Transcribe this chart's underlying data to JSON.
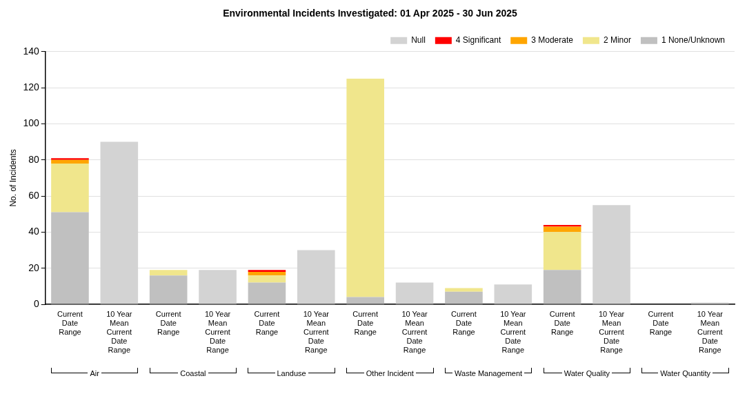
{
  "chart_data": {
    "type": "bar",
    "title": "Environmental Incidents Investigated: 01 Apr 2025 - 30 Jun 2025",
    "ylabel": "No. of Incidents",
    "categories": [
      "Current Date Range",
      "10 Year Mean Current Date Range",
      "Current Date Range",
      "10 Year Mean Current Date Range",
      "Current Date Range",
      "10 Year Mean Current Date Range",
      "Current Date Range",
      "10 Year Mean Current Date Range",
      "Current Date Range",
      "10 Year Mean Current Date Range",
      "Current Date Range",
      "10 Year Mean Current Date Range",
      "Current Date Range",
      "10 Year Mean Current Date Range"
    ],
    "annotations": [
      "Air",
      "Coastal",
      "Landuse",
      "Other Incident",
      "Waste Management",
      "Water Quality",
      "Water Quantity"
    ],
    "stacked": true,
    "series": [
      {
        "name": "1 None/Unknown",
        "color": "#c0c0c0",
        "values": [
          51,
          null,
          16,
          null,
          12,
          null,
          4,
          null,
          7,
          null,
          19,
          null,
          0,
          null
        ]
      },
      {
        "name": "2 Minor",
        "color": "#f0e68c",
        "values": [
          27,
          null,
          3,
          null,
          4,
          null,
          121,
          null,
          2,
          null,
          21,
          null,
          0,
          null
        ]
      },
      {
        "name": "3 Moderate",
        "color": "#ffa500",
        "values": [
          2,
          null,
          0,
          null,
          2,
          null,
          0,
          null,
          0,
          null,
          3,
          null,
          0,
          null
        ]
      },
      {
        "name": "4 Significant",
        "color": "#ff0000",
        "values": [
          1,
          null,
          0,
          null,
          1,
          null,
          0,
          null,
          0,
          null,
          1,
          null,
          0,
          null
        ]
      },
      {
        "name": "Null",
        "color": "#d3d3d3",
        "values": [
          null,
          90,
          null,
          19,
          null,
          30,
          null,
          12,
          null,
          11,
          null,
          55,
          null,
          1
        ]
      }
    ],
    "ylim": [
      0,
      140
    ],
    "yticks": [
      0,
      20,
      40,
      60,
      80,
      100,
      120,
      140
    ],
    "grid": "y",
    "legend": "top right"
  }
}
